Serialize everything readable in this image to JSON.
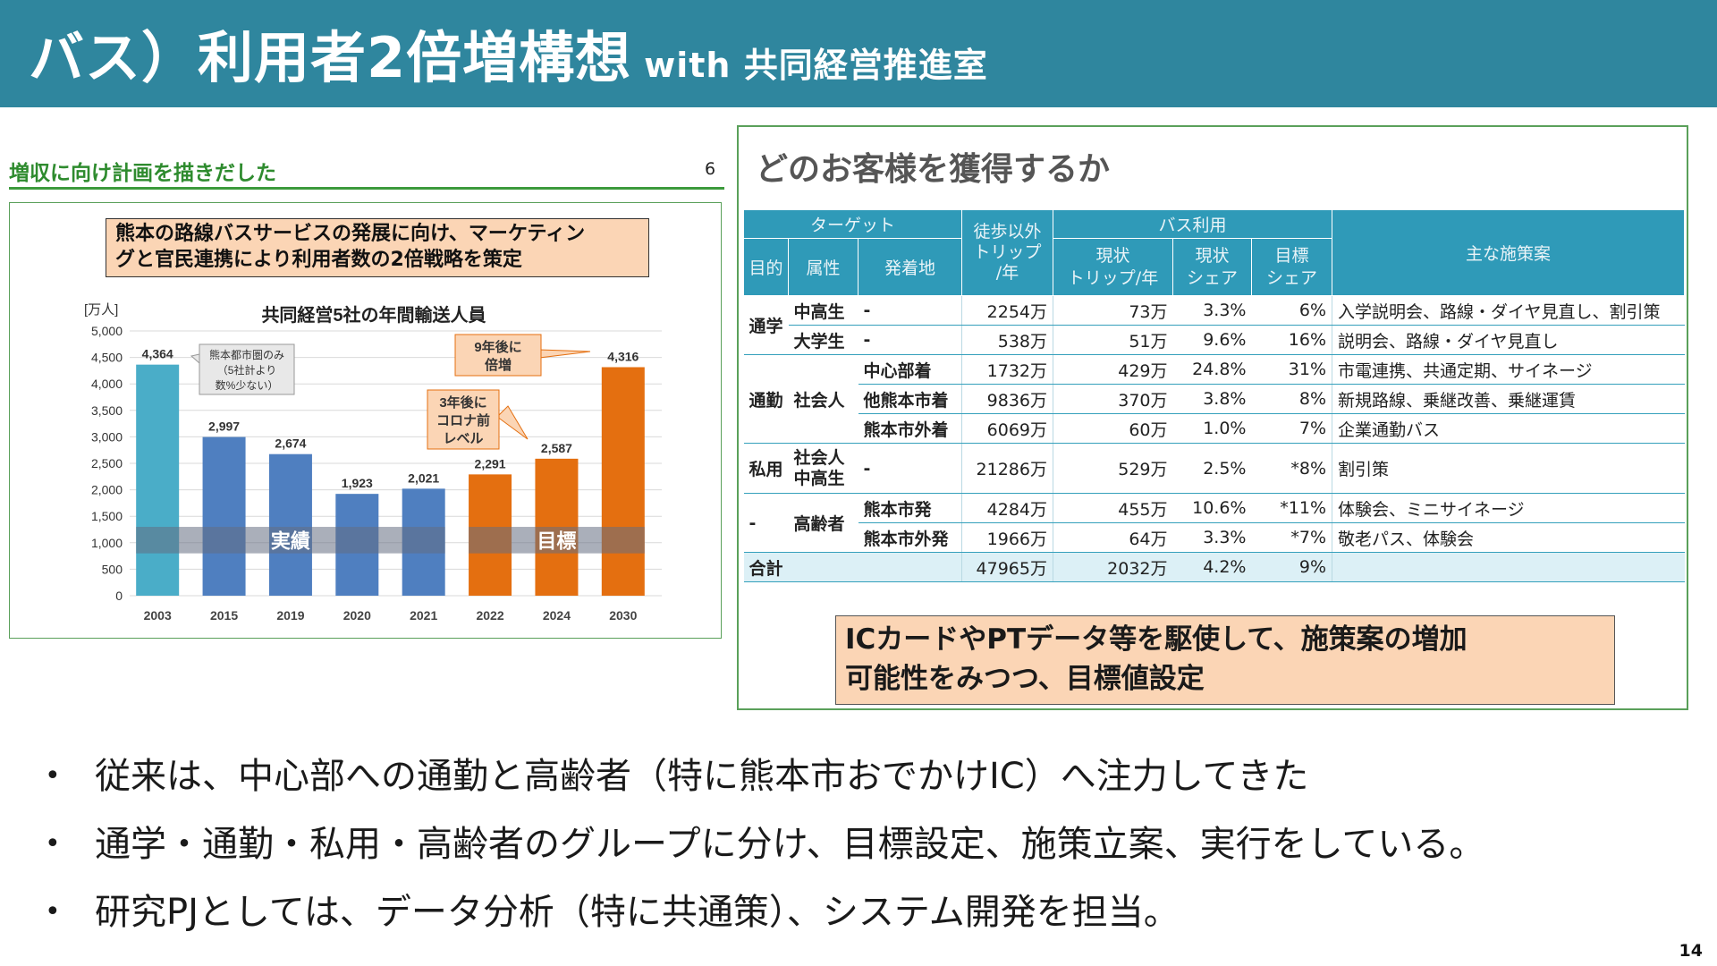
{
  "header": {
    "title": "バス）利用者2倍増構想",
    "subtitle": "with 共同経営推進室"
  },
  "left": {
    "heading": "増収に向け計画を描きだした",
    "page_no": "6",
    "callout_line1": "熊本の路線バスサービスの発展に向け、マーケティン",
    "callout_line2": "グと官民連携により利用者数の2倍戦略を策定"
  },
  "chart_data": {
    "type": "bar",
    "title": "共同経営5社の年間輸送人員",
    "ylabel": "[万人]",
    "xlabel": "",
    "ylim": [
      0,
      5000
    ],
    "yticks": [
      "0",
      "500",
      "1,000",
      "1,500",
      "2,000",
      "2,500",
      "3,000",
      "3,500",
      "4,000",
      "4,500",
      "5,000"
    ],
    "categories": [
      "2003",
      "2015",
      "2019",
      "2020",
      "2021",
      "2022",
      "2024",
      "2030"
    ],
    "values": [
      4364,
      2997,
      2674,
      1923,
      2021,
      2291,
      2587,
      4316
    ],
    "value_labels": [
      "4,364",
      "2,997",
      "2,674",
      "1,923",
      "2,021",
      "2,291",
      "2,587",
      "4,316"
    ],
    "bar_colors": [
      "#4aadc8",
      "#4f7fc0",
      "#4f7fc0",
      "#4f7fc0",
      "#4f7fc0",
      "#e46f10",
      "#e46f10",
      "#e46f10"
    ],
    "band_actual": "実績",
    "band_target": "目標",
    "annotations": [
      {
        "lines": [
          "熊本都市圏のみ",
          "（5社計より",
          "数%少ない）"
        ]
      },
      {
        "lines": [
          "9年後に",
          "倍増"
        ]
      },
      {
        "lines": [
          "3年後に",
          "コロナ前",
          "レベル"
        ]
      }
    ],
    "grid": true
  },
  "right": {
    "heading": "どのお客様を獲得するか",
    "header_row1": {
      "target": "ターゲット",
      "trips": [
        "徒歩以外",
        "トリップ",
        "/年"
      ],
      "bus": "バス利用",
      "measures": "主な施策案"
    },
    "header_row2": {
      "purpose": "目的",
      "attr": "属性",
      "dest": "発着地",
      "cur_trips": [
        "現状",
        "トリップ/年"
      ],
      "cur_share": [
        "現状",
        "シェア"
      ],
      "goal_share": [
        "目標",
        "シェア"
      ]
    },
    "rows": [
      {
        "attr": "中高生",
        "dest": "-",
        "trips": "2254万",
        "cur_trips": "73万",
        "cur_share": "3.3%",
        "goal": "6%",
        "measure": "入学説明会、路線・ダイヤ見直し、割引策"
      },
      {
        "attr": "大学生",
        "dest": "-",
        "trips": "538万",
        "cur_trips": "51万",
        "cur_share": "9.6%",
        "goal": "16%",
        "measure": "説明会、路線・ダイヤ見直し"
      },
      {
        "attr": "",
        "dest": "中心部着",
        "trips": "1732万",
        "cur_trips": "429万",
        "cur_share": "24.8%",
        "goal": "31%",
        "measure": "市電連携、共通定期、サイネージ"
      },
      {
        "attr": "社会人",
        "dest": "他熊本市着",
        "trips": "9836万",
        "cur_trips": "370万",
        "cur_share": "3.8%",
        "goal": "8%",
        "measure": "新規路線、乗継改善、乗継運賃"
      },
      {
        "attr": "",
        "dest": "熊本市外着",
        "trips": "6069万",
        "cur_trips": "60万",
        "cur_share": "1.0%",
        "goal": "7%",
        "measure": "企業通勤バス"
      },
      {
        "attr1": "社会人",
        "attr2": "中高生",
        "dest": "-",
        "trips": "21286万",
        "cur_trips": "529万",
        "cur_share": "2.5%",
        "goal": "*8%",
        "measure": "割引策"
      },
      {
        "attr": "高齢者",
        "dest": "熊本市発",
        "trips": "4284万",
        "cur_trips": "455万",
        "cur_share": "10.6%",
        "goal": "*11%",
        "measure": "体験会、ミニサイネージ"
      },
      {
        "attr": "",
        "dest": "熊本市外発",
        "trips": "1966万",
        "cur_trips": "64万",
        "cur_share": "3.3%",
        "goal": "*7%",
        "measure": "敬老パス、体験会"
      }
    ],
    "purposes": {
      "school": "通学",
      "commute": "通勤",
      "private": "私用",
      "elderly": "-"
    },
    "total": {
      "label": "合計",
      "trips": "47965万",
      "cur_trips": "2032万",
      "cur_share": "4.2%",
      "goal": "9%"
    },
    "note_line1": "ICカードやPTデータ等を駆使して、施策案の増加",
    "note_line2": "可能性をみつつ、目標値設定"
  },
  "bullets": [
    "従来は、中心部への通勤と高齢者（特に熊本市おでかけIC）へ注力してきた",
    "通学・通勤・私用・高齢者のグループに分け、目標設定、施策立案、実行をしている。",
    "研究PJとしては、データ分析（特に共通策）、システム開発を担当。"
  ],
  "page_number": "14"
}
